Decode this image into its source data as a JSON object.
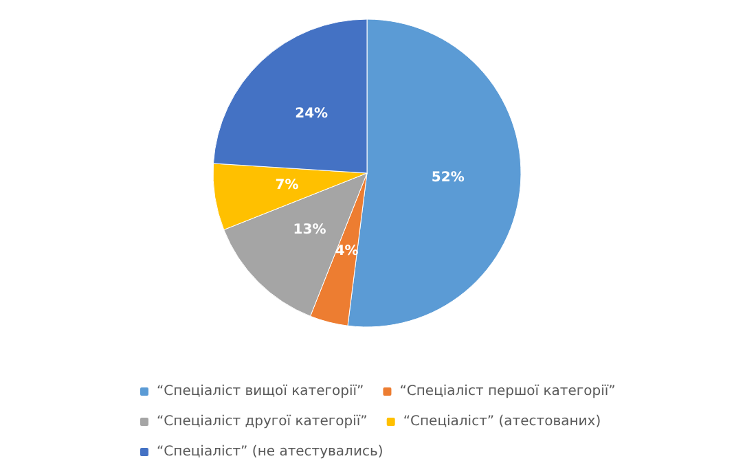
{
  "chart_data": {
    "type": "pie",
    "categories": [
      "“Спеціаліст вищої категорії”",
      "“Спеціаліст першої категорії”",
      "“Спеціаліст другої категорії”",
      "“Спеціаліст” (атестованих)",
      "“Спеціаліст” (не атестувались)"
    ],
    "values": [
      52,
      4,
      13,
      7,
      24
    ],
    "colors": [
      "#5b9bd5",
      "#ed7d31",
      "#a5a5a5",
      "#ffc000",
      "#4472c4"
    ],
    "value_labels": [
      "52%",
      "4%",
      "13%",
      "7%",
      "24%"
    ],
    "legend": "bottom"
  }
}
